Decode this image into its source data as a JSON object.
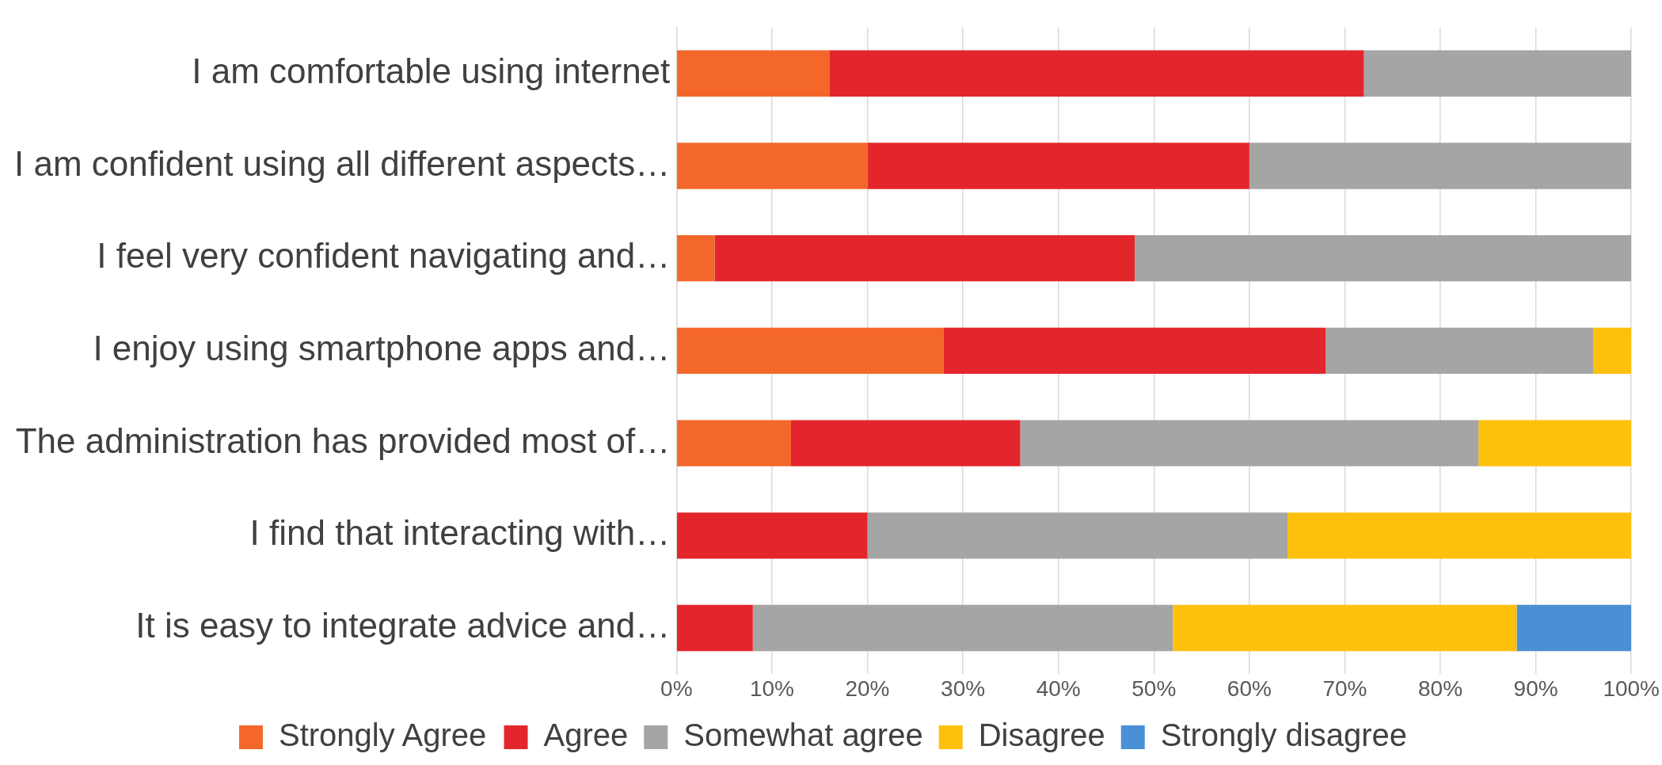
{
  "chart_data": {
    "type": "bar",
    "orientation": "horizontal",
    "stacked": true,
    "categories": [
      "I am comfortable using internet",
      "I am confident using all different aspects…",
      "I feel very confident navigating and…",
      "I enjoy using smartphone apps and…",
      "The administration has provided most of…",
      "I find that interacting with…",
      "It is easy to integrate advice and…"
    ],
    "series": [
      {
        "name": "Strongly Agree",
        "color": "#f4672a",
        "values": [
          16,
          20,
          4,
          28,
          12,
          0,
          0
        ]
      },
      {
        "name": "Agree",
        "color": "#e3262b",
        "values": [
          56,
          40,
          44,
          40,
          24,
          20,
          8
        ]
      },
      {
        "name": "Somewhat agree",
        "color": "#a5a5a5",
        "values": [
          28,
          40,
          52,
          28,
          48,
          44,
          44
        ]
      },
      {
        "name": "Disagree",
        "color": "#fdc00c",
        "values": [
          0,
          0,
          0,
          4,
          16,
          36,
          36
        ]
      },
      {
        "name": "Strongly disagree",
        "color": "#4a90d6",
        "values": [
          0,
          0,
          0,
          0,
          0,
          0,
          12
        ]
      }
    ],
    "xlim": [
      0,
      100
    ],
    "xticks": [
      {
        "value": 0,
        "label": "0%"
      },
      {
        "value": 10,
        "label": "10%"
      },
      {
        "value": 20,
        "label": "20%"
      },
      {
        "value": 30,
        "label": "30%"
      },
      {
        "value": 40,
        "label": "40%"
      },
      {
        "value": 50,
        "label": "50%"
      },
      {
        "value": 60,
        "label": "60%"
      },
      {
        "value": 70,
        "label": "70%"
      },
      {
        "value": 80,
        "label": "80%"
      },
      {
        "value": 90,
        "label": "90%"
      },
      {
        "value": 100,
        "label": "100%"
      }
    ],
    "grid": "x",
    "legend": "bottom"
  }
}
